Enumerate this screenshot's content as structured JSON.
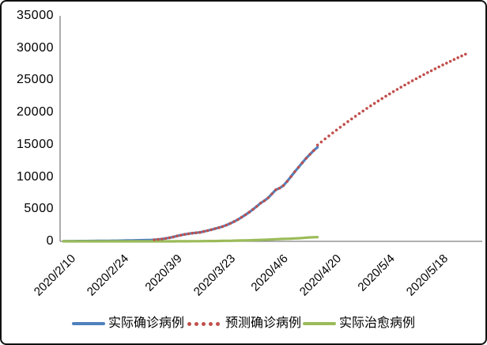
{
  "window": {
    "background": "#ffffff",
    "border_color": "#111111"
  },
  "chart_data": {
    "type": "line",
    "title": "",
    "xlabel": "",
    "ylabel": "",
    "ylim": [
      0,
      35000
    ],
    "ytick_step": 5000,
    "ytick_labels_top_down": [
      "35000",
      "30000",
      "25000",
      "20000",
      "15000",
      "10000",
      "5000",
      "0"
    ],
    "xticks": [
      "2020/2/10",
      "2020/2/24",
      "2020/3/9",
      "2020/3/23",
      "2020/4/6",
      "2020/4/20",
      "2020/5/4",
      "2020/5/18"
    ],
    "x_day0_date": "2020/2/10",
    "x_tick_interval_days": 14,
    "days_per_point": 1,
    "grid": "off",
    "legend_position": "bottom",
    "axis_color": "#808080",
    "series": [
      {
        "name": "实际确诊病例",
        "color": "#4F81BD",
        "style": "solid",
        "start_day": 0,
        "values": [
          30,
          33,
          36,
          40,
          44,
          48,
          52,
          57,
          62,
          68,
          74,
          80,
          87,
          95,
          103,
          112,
          121,
          131,
          142,
          154,
          167,
          181,
          196,
          212,
          240,
          290,
          360,
          450,
          560,
          690,
          830,
          960,
          1080,
          1180,
          1270,
          1330,
          1390,
          1520,
          1660,
          1810,
          1970,
          2130,
          2300,
          2520,
          2770,
          3060,
          3380,
          3730,
          4110,
          4520,
          4960,
          5430,
          5930,
          6300,
          6750,
          7370,
          8000,
          8250,
          8650,
          9310,
          10050,
          10800,
          11500,
          12200,
          12900,
          13500,
          14100,
          14600
        ]
      },
      {
        "name": "预测确诊病例",
        "color": "#C0504D",
        "style": "dotted",
        "start_day": 24,
        "values": [
          240,
          290,
          360,
          450,
          560,
          690,
          830,
          960,
          1080,
          1180,
          1270,
          1330,
          1390,
          1520,
          1660,
          1810,
          1970,
          2130,
          2300,
          2520,
          2770,
          3060,
          3380,
          3730,
          4110,
          4520,
          4960,
          5430,
          5930,
          6300,
          6750,
          7370,
          8000,
          8250,
          8650,
          9310,
          10050,
          10800,
          11500,
          12200,
          12900,
          13500,
          14100,
          14950,
          15430,
          15900,
          16360,
          16820,
          17270,
          17710,
          18150,
          18580,
          19000,
          19420,
          19830,
          20230,
          20630,
          21020,
          21400,
          21780,
          22150,
          22520,
          22880,
          23230,
          23580,
          23920,
          24260,
          24590,
          24920,
          25240,
          25560,
          25870,
          26180,
          26480,
          26780,
          27080,
          27370,
          27660,
          27940,
          28220,
          28500,
          28770,
          29040
        ]
      },
      {
        "name": "实际治愈病例",
        "color": "#9BBB59",
        "style": "solid",
        "start_day": 0,
        "values": [
          5,
          5,
          5,
          5,
          5,
          5,
          5,
          5,
          5,
          5,
          5,
          5,
          5,
          5,
          5,
          5,
          5,
          5,
          5,
          5,
          5,
          5,
          5,
          5,
          5,
          5,
          5,
          5,
          5,
          5,
          10,
          12,
          15,
          18,
          22,
          26,
          30,
          35,
          40,
          46,
          53,
          60,
          70,
          80,
          92,
          105,
          118,
          132,
          147,
          163,
          180,
          200,
          222,
          246,
          272,
          300,
          330,
          355,
          375,
          395,
          420,
          450,
          480,
          510,
          560,
          610,
          635,
          650
        ]
      }
    ]
  }
}
